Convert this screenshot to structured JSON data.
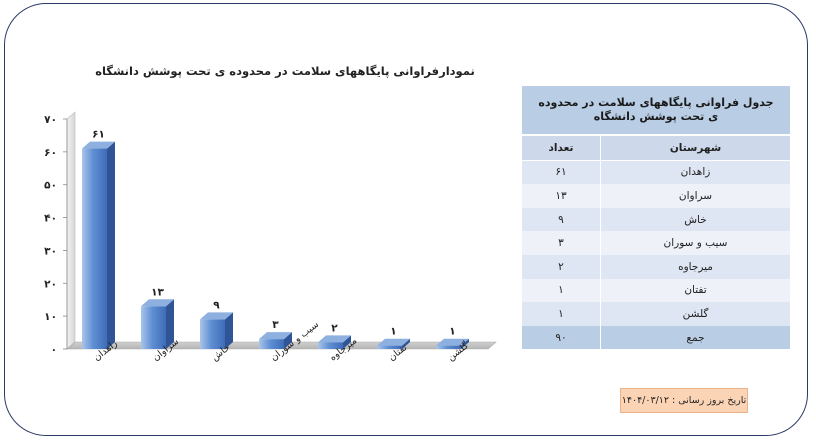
{
  "chart_data": {
    "type": "bar",
    "title": "نمودارفراوانی پایگاههای سلامت در محدوده ی تحت پوشش دانشگاه",
    "categories": [
      "زاهدان",
      "سراوان",
      "خاش",
      "سیب و سوران",
      "میرجاوه",
      "تفتان",
      "گلشن"
    ],
    "values": [
      61,
      13,
      9,
      3,
      2,
      1,
      1
    ],
    "value_labels": [
      "۶۱",
      "۱۳",
      "۹",
      "۳",
      "۲",
      "۱",
      "۱"
    ],
    "ylim": [
      0,
      70
    ],
    "yticks": [
      0,
      10,
      20,
      30,
      40,
      50,
      60,
      70
    ],
    "ytick_labels": [
      "۰",
      "۱۰",
      "۲۰",
      "۳۰",
      "۴۰",
      "۵۰",
      "۶۰",
      "۷۰"
    ],
    "bar_color": "#4f81bd",
    "grid": false,
    "style": "3d"
  },
  "table": {
    "title": "جدول فراوانی پایگاههای سلامت در محدوده ی تحت پوشش دانشگاه",
    "header_city": "شهرستان",
    "header_count": "تعداد",
    "rows": [
      {
        "city": "زاهدان",
        "count": "۶۱"
      },
      {
        "city": "سراوان",
        "count": "۱۳"
      },
      {
        "city": "خاش",
        "count": "۹"
      },
      {
        "city": "سیب و سوران",
        "count": "۳"
      },
      {
        "city": "میرجاوه",
        "count": "۲"
      },
      {
        "city": "تفتان",
        "count": "۱"
      },
      {
        "city": "گلشن",
        "count": "۱"
      }
    ],
    "total_label": "جمع",
    "total_value": "۹۰"
  },
  "update_text": "تاریخ بروز رسانی : ۱۴۰۴/۰۳/۱۲"
}
